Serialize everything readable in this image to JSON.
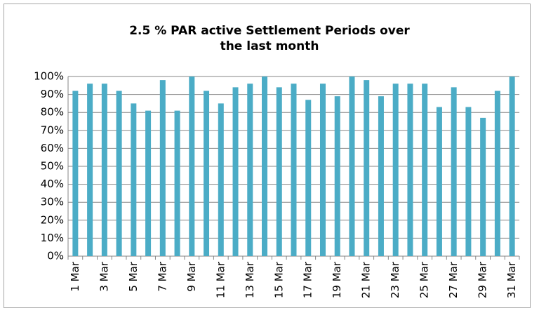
{
  "chart_data": {
    "type": "bar",
    "title": "2.5 % PAR active Settlement Periods over the last month",
    "categories": [
      "1 Mar",
      null,
      "3 Mar",
      null,
      "5 Mar",
      null,
      "7 Mar",
      null,
      "9 Mar",
      null,
      "11 Mar",
      null,
      "13 Mar",
      null,
      "15 Mar",
      null,
      "17 Mar",
      null,
      "19 Mar",
      null,
      "21 Mar",
      null,
      "23 Mar",
      null,
      "25 Mar",
      null,
      "27 Mar",
      null,
      "29 Mar",
      null,
      "31 Mar"
    ],
    "values": [
      92,
      96,
      96,
      92,
      85,
      81,
      98,
      81,
      100,
      92,
      85,
      94,
      96,
      100,
      94,
      96,
      87,
      96,
      89,
      100,
      98,
      89,
      96,
      96,
      96,
      83,
      94,
      83,
      77,
      92,
      100
    ],
    "color": "#4bacc6",
    "ylim": [
      0,
      100
    ],
    "yticks": [
      {
        "value": 0,
        "label": "0%"
      },
      {
        "value": 10,
        "label": "10%"
      },
      {
        "value": 20,
        "label": "20%"
      },
      {
        "value": 30,
        "label": "30%"
      },
      {
        "value": 40,
        "label": "40%"
      },
      {
        "value": 50,
        "label": "50%"
      },
      {
        "value": 60,
        "label": "60%"
      },
      {
        "value": 70,
        "label": "70%"
      },
      {
        "value": 80,
        "label": "80%"
      },
      {
        "value": 90,
        "label": "90%"
      },
      {
        "value": 100,
        "label": "100%"
      }
    ],
    "grid": true
  }
}
